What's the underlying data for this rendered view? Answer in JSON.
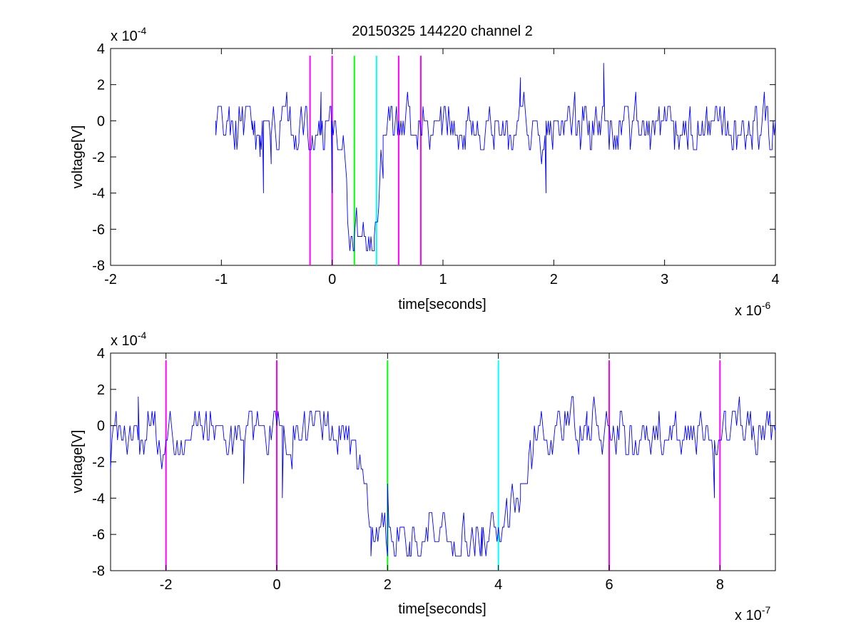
{
  "chart_data": [
    {
      "type": "line",
      "title": "20150325 144220 channel 2",
      "xlabel": "time[seconds]",
      "ylabel": "voltage[V]",
      "x_multiplier_base": "x 10",
      "x_multiplier_exp": "-6",
      "y_multiplier_base": "x 10",
      "y_multiplier_exp": "-4",
      "xlim": [
        -2,
        4
      ],
      "ylim": [
        -8,
        4
      ],
      "xticks": [
        -2,
        -1,
        0,
        1,
        2,
        3,
        4
      ],
      "xtick_labels": [
        "-2",
        "-1",
        "0",
        "1",
        "2",
        "3",
        "4"
      ],
      "yticks": [
        -8,
        -6,
        -4,
        -2,
        0,
        2,
        4
      ],
      "ytick_labels": [
        "-8",
        "-6",
        "-4",
        "-2",
        "0",
        "2",
        "4"
      ],
      "grid": false,
      "series": [
        {
          "color": "#0000ff",
          "x_range": [
            -1.05,
            4.0
          ],
          "noise_range": [
            -2.4,
            1.6
          ],
          "dip_start": 0.08,
          "dip_end": 0.46,
          "dip_level": -5.8,
          "keypoints": [
            {
              "x": -1.05,
              "y": -0.8
            },
            {
              "x": -0.72,
              "y": -0.5
            },
            {
              "x": -0.65,
              "y": -2.0
            },
            {
              "x": -0.62,
              "y": -4.0
            },
            {
              "x": -0.55,
              "y": -2.4
            },
            {
              "x": -0.3,
              "y": -1.2
            },
            {
              "x": -0.1,
              "y": 1.6
            },
            {
              "x": 0.0,
              "y": -4.0
            },
            {
              "x": 0.2,
              "y": -7.2
            },
            {
              "x": 0.38,
              "y": -7.2
            },
            {
              "x": 0.46,
              "y": -3.2
            },
            {
              "x": 1.7,
              "y": 2.4
            },
            {
              "x": 1.93,
              "y": -4.0
            },
            {
              "x": 2.45,
              "y": 3.2
            }
          ]
        }
      ],
      "markers": [
        {
          "x": -0.2,
          "color": "#ff00ff"
        },
        {
          "x": 0.0,
          "color": "#ff00ff"
        },
        {
          "x": 0.2,
          "color": "#00ff00"
        },
        {
          "x": 0.4,
          "color": "#00ffff"
        },
        {
          "x": 0.6,
          "color": "#ff00ff"
        },
        {
          "x": 0.8,
          "color": "#ff00ff"
        }
      ],
      "marker_ylim": [
        -8,
        3.6
      ]
    },
    {
      "type": "line",
      "title": "",
      "xlabel": "time[seconds]",
      "ylabel": "voltage[V]",
      "x_multiplier_base": "x 10",
      "x_multiplier_exp": "-7",
      "y_multiplier_base": "x 10",
      "y_multiplier_exp": "-4",
      "xlim": [
        -3,
        9
      ],
      "ylim": [
        -8,
        4
      ],
      "xticks": [
        -2,
        0,
        2,
        4,
        6,
        8
      ],
      "xtick_labels": [
        "-2",
        "0",
        "2",
        "4",
        "6",
        "8"
      ],
      "yticks": [
        -8,
        -6,
        -4,
        -2,
        0,
        2,
        4
      ],
      "ytick_labels": [
        "-8",
        "-6",
        "-4",
        "-2",
        "0",
        "2",
        "4"
      ],
      "grid": false,
      "series": [
        {
          "color": "#0000ff",
          "x_range": [
            -3.0,
            9.0
          ],
          "noise_range": [
            -2.4,
            1.6
          ],
          "dip_start": 1.2,
          "dip_end": 4.7,
          "dip_level": -5.8,
          "keypoints": [
            {
              "x": -3.0,
              "y": -2.4
            },
            {
              "x": -2.5,
              "y": 1.6
            },
            {
              "x": -0.6,
              "y": -3.2
            },
            {
              "x": 0.1,
              "y": -4.0
            },
            {
              "x": 1.7,
              "y": -7.2
            },
            {
              "x": 2.0,
              "y": -6.4
            },
            {
              "x": 2.0,
              "y": -3.2
            },
            {
              "x": 2.4,
              "y": -7.2
            },
            {
              "x": 3.7,
              "y": -7.2
            },
            {
              "x": 4.4,
              "y": -3.2
            },
            {
              "x": 5.6,
              "y": 0.8
            },
            {
              "x": 7.9,
              "y": -4.0
            },
            {
              "x": 8.1,
              "y": 0.8
            },
            {
              "x": 9.0,
              "y": -0.3
            }
          ]
        }
      ],
      "markers": [
        {
          "x": -2.0,
          "color": "#ff00ff"
        },
        {
          "x": 0.0,
          "color": "#ff00ff"
        },
        {
          "x": 2.0,
          "color": "#00ff00"
        },
        {
          "x": 4.0,
          "color": "#00ffff"
        },
        {
          "x": 6.0,
          "color": "#ff00ff"
        },
        {
          "x": 8.0,
          "color": "#ff00ff"
        }
      ],
      "marker_ylim": [
        -8,
        3.6
      ]
    }
  ]
}
